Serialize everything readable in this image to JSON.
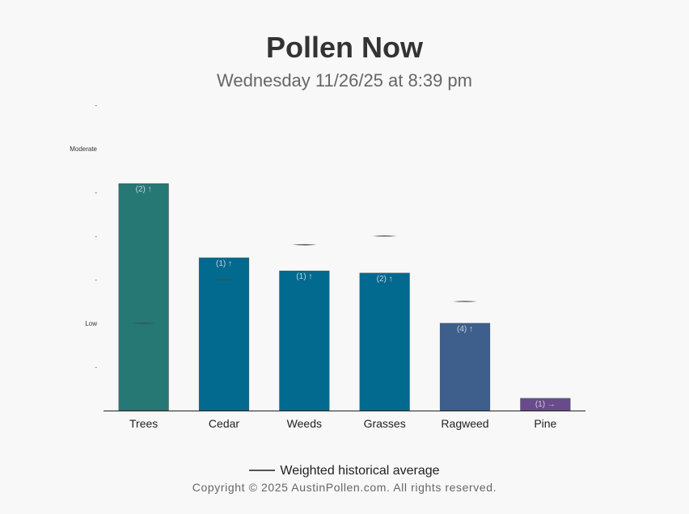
{
  "title": "Pollen Now",
  "subtitle": "Wednesday 11/26/25 at 8:39 pm",
  "legend_label": "Weighted historical average",
  "copyright": "Copyright © 2025 AustinPollen.com.  All rights reserved.",
  "chart_data": {
    "type": "bar",
    "categories": [
      "Trees",
      "Cedar",
      "Weeds",
      "Grasses",
      "Ragweed",
      "Pine"
    ],
    "values": [
      5.2,
      3.5,
      3.2,
      3.15,
      2.0,
      0.28
    ],
    "bar_labels": [
      "(2) ↑",
      "(1) ↑",
      "(1) ↑",
      "(2) ↑",
      "(4) ↑",
      "(1) →"
    ],
    "historical_average": [
      2.0,
      3.0,
      3.8,
      4.0,
      2.5,
      null
    ],
    "bar_colors": [
      "#267874",
      "#036a8f",
      "#036a8f",
      "#036a8f",
      "#3e5f8c",
      "#6a4b8a"
    ],
    "ylim": [
      0,
      7
    ],
    "y_ticks": [
      {
        "value": 1,
        "label": "-"
      },
      {
        "value": 2,
        "label": "Low"
      },
      {
        "value": 3,
        "label": "-"
      },
      {
        "value": 4,
        "label": "-"
      },
      {
        "value": 5,
        "label": "-"
      },
      {
        "value": 6,
        "label": "Moderate"
      },
      {
        "value": 7,
        "label": "-"
      }
    ],
    "grid": false,
    "legend_position": "bottom"
  }
}
